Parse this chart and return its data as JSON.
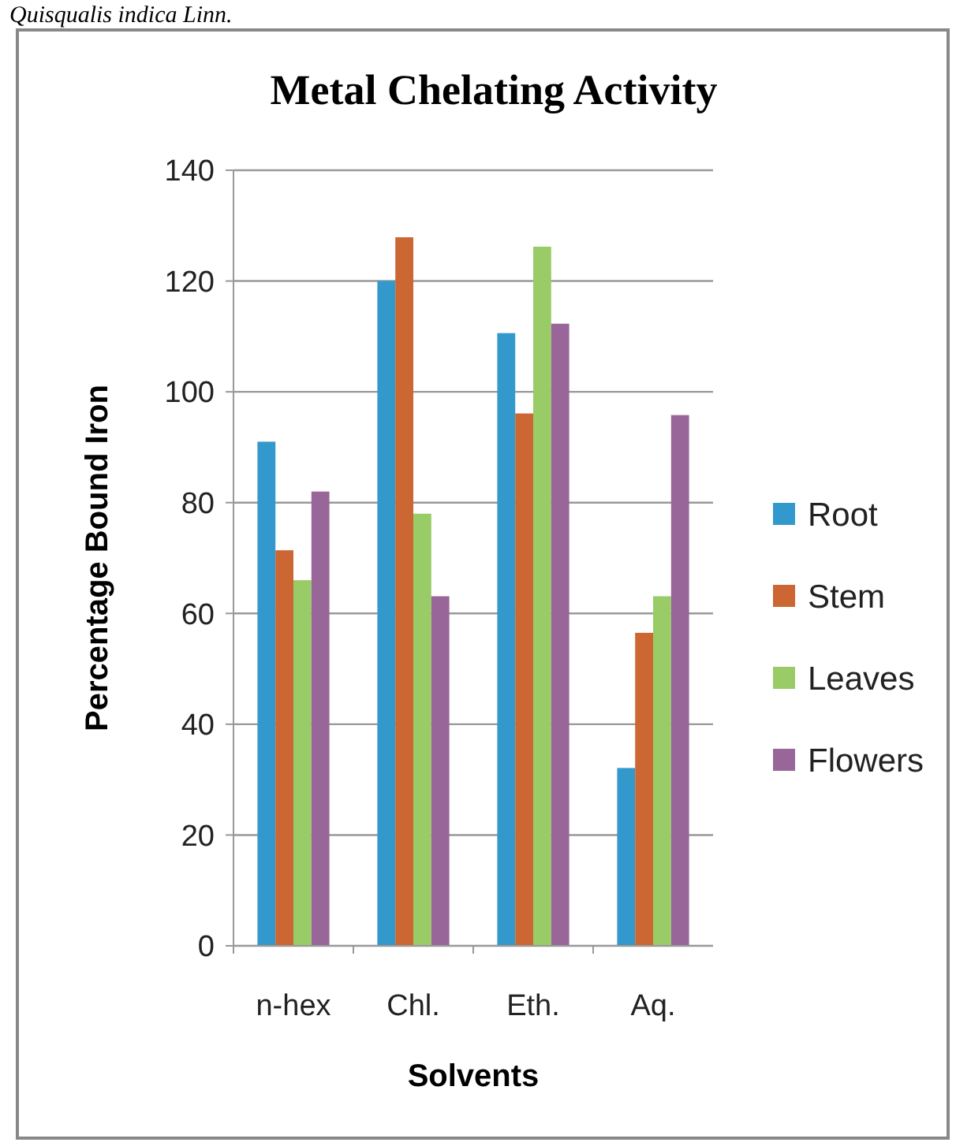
{
  "chart_data": {
    "type": "bar",
    "title": "Metal Chelating Activity",
    "xlabel": "Solvents",
    "ylabel": "Percentage Bound Iron",
    "annotations": [
      "Quisqualis indica Linn."
    ],
    "categories": [
      "n-hex",
      "Chl.",
      "Eth.",
      "Aq."
    ],
    "series": [
      {
        "name": "Root",
        "color": "#3399cc",
        "values": [
          91,
          120,
          110.6,
          32.1
        ]
      },
      {
        "name": "Stem",
        "color": "#cc6633",
        "values": [
          71.4,
          127.9,
          96.1,
          56.5
        ]
      },
      {
        "name": "Leaves",
        "color": "#99cc66",
        "values": [
          66,
          78,
          126.2,
          63.1
        ]
      },
      {
        "name": "Flowers",
        "color": "#996699",
        "values": [
          82,
          63.1,
          112.3,
          95.8
        ]
      }
    ],
    "ylim": [
      0,
      140
    ],
    "yticks": [
      0,
      20,
      40,
      60,
      80,
      100,
      120,
      140
    ],
    "grid": "y",
    "legend": "right"
  }
}
